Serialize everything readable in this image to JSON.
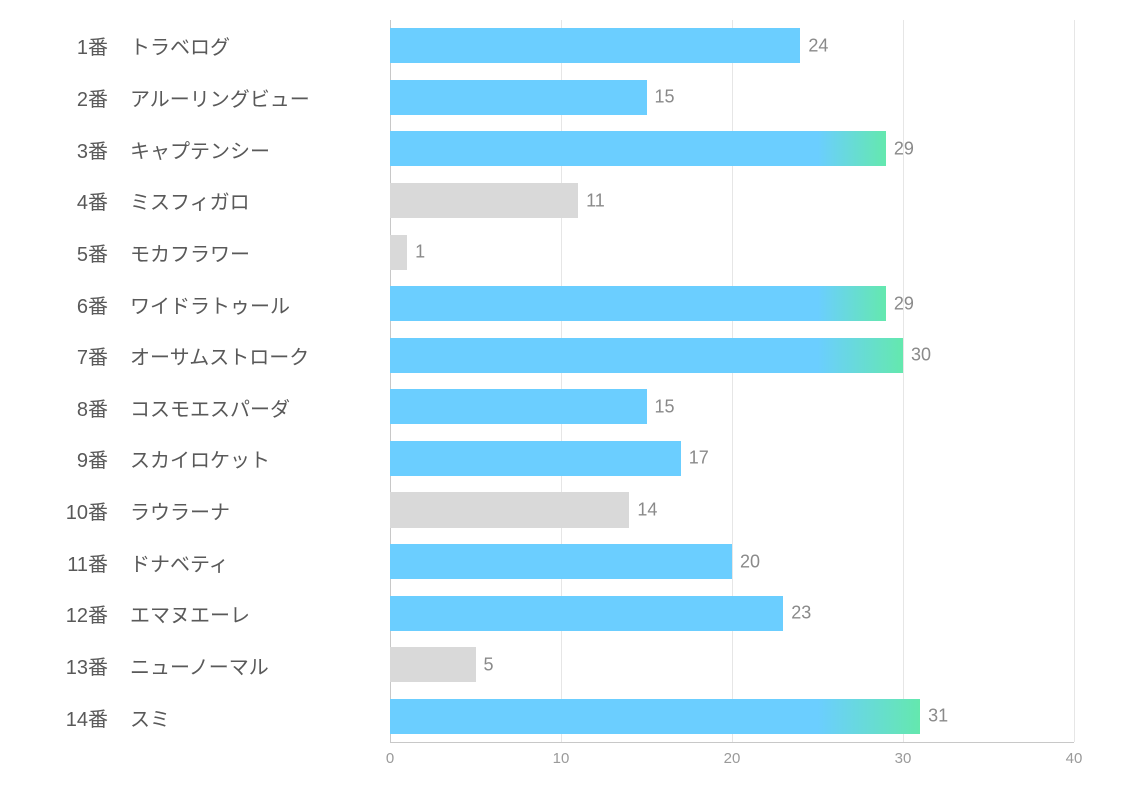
{
  "chart": {
    "type": "bar",
    "orientation": "horizontal",
    "xlim": [
      0,
      40
    ],
    "xtick_step": 10,
    "xticks": [
      0,
      10,
      20,
      30,
      40
    ],
    "bar_height_ratio": 0.68,
    "label_fontsize": 20,
    "value_fontsize": 18,
    "tick_fontsize": 15,
    "colors": {
      "label": "#595959",
      "value": "#8a8a8a",
      "tick": "#9a9a9a",
      "axis": "#c8c8c8",
      "grid": "#e6e6e6",
      "bar_gray": "#d9d9d9",
      "bar_blue": "#6bceff",
      "gradient_start": "#6bceff",
      "gradient_end": "#64e8ae",
      "background": "#ffffff"
    },
    "gradient_threshold": 25,
    "items": [
      {
        "num": "1番",
        "name": "トラベログ",
        "value": 24,
        "style": "blue"
      },
      {
        "num": "2番",
        "name": "アルーリングビュー",
        "value": 15,
        "style": "blue"
      },
      {
        "num": "3番",
        "name": "キャプテンシー",
        "value": 29,
        "style": "gradient"
      },
      {
        "num": "4番",
        "name": "ミスフィガロ",
        "value": 11,
        "style": "gray"
      },
      {
        "num": "5番",
        "name": "モカフラワー",
        "value": 1,
        "style": "gray"
      },
      {
        "num": "6番",
        "name": "ワイドラトゥール",
        "value": 29,
        "style": "gradient"
      },
      {
        "num": "7番",
        "name": "オーサムストローク",
        "value": 30,
        "style": "gradient"
      },
      {
        "num": "8番",
        "name": "コスモエスパーダ",
        "value": 15,
        "style": "blue"
      },
      {
        "num": "9番",
        "name": "スカイロケット",
        "value": 17,
        "style": "blue"
      },
      {
        "num": "10番",
        "name": "ラウラーナ",
        "value": 14,
        "style": "gray"
      },
      {
        "num": "11番",
        "name": "ドナベティ",
        "value": 20,
        "style": "blue"
      },
      {
        "num": "12番",
        "name": "エマヌエーレ",
        "value": 23,
        "style": "blue"
      },
      {
        "num": "13番",
        "name": "ニューノーマル",
        "value": 5,
        "style": "gray"
      },
      {
        "num": "14番",
        "name": "スミ",
        "value": 31,
        "style": "gradient"
      }
    ]
  }
}
